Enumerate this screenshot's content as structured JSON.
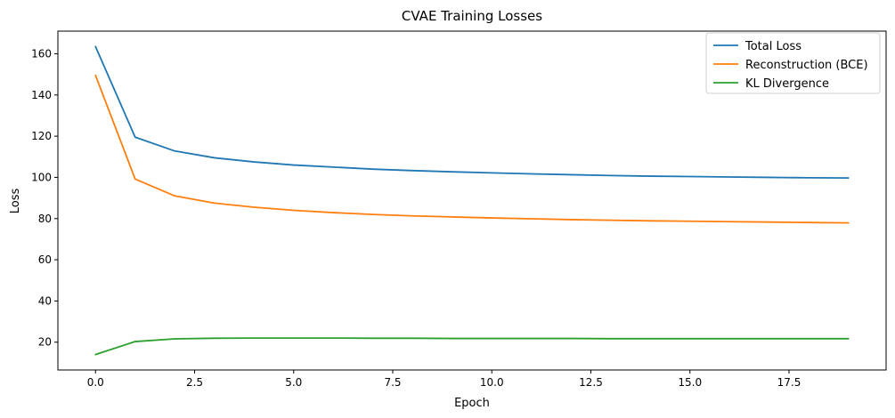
{
  "chart_data": {
    "type": "line",
    "title": "CVAE Training Losses",
    "xlabel": "Epoch",
    "ylabel": "Loss",
    "xlim": [
      -0.95,
      19.95
    ],
    "ylim": [
      6.5,
      171
    ],
    "xticks": [
      0.0,
      2.5,
      5.0,
      7.5,
      10.0,
      12.5,
      15.0,
      17.5
    ],
    "xtick_labels": [
      "0.0",
      "2.5",
      "5.0",
      "7.5",
      "10.0",
      "12.5",
      "15.0",
      "17.5"
    ],
    "yticks": [
      20,
      40,
      60,
      80,
      100,
      120,
      140,
      160
    ],
    "ytick_labels": [
      "20",
      "40",
      "60",
      "80",
      "100",
      "120",
      "140",
      "160"
    ],
    "grid": false,
    "legend_position": "top-right",
    "x": [
      0,
      1,
      2,
      3,
      4,
      5,
      6,
      7,
      8,
      9,
      10,
      11,
      12,
      13,
      14,
      15,
      16,
      17,
      18,
      19
    ],
    "series": [
      {
        "name": "Total Loss",
        "color": "#1f77b4",
        "values": [
          163.5,
          119.5,
          112.8,
          109.5,
          107.5,
          106.0,
          105.0,
          104.0,
          103.3,
          102.7,
          102.2,
          101.7,
          101.3,
          100.9,
          100.6,
          100.4,
          100.2,
          100.0,
          99.8,
          99.7
        ]
      },
      {
        "name": "Reconstruction (BCE)",
        "color": "#ff7f0e",
        "values": [
          149.5,
          99.2,
          91.0,
          87.5,
          85.5,
          84.0,
          82.9,
          82.0,
          81.3,
          80.8,
          80.3,
          79.9,
          79.5,
          79.2,
          78.9,
          78.7,
          78.5,
          78.3,
          78.1,
          77.9
        ]
      },
      {
        "name": "KL Divergence",
        "color": "#2ca02c",
        "values": [
          14.0,
          20.3,
          21.6,
          21.9,
          22.0,
          22.0,
          22.0,
          21.9,
          21.9,
          21.8,
          21.8,
          21.8,
          21.8,
          21.7,
          21.7,
          21.7,
          21.7,
          21.7,
          21.7,
          21.7
        ]
      }
    ]
  }
}
